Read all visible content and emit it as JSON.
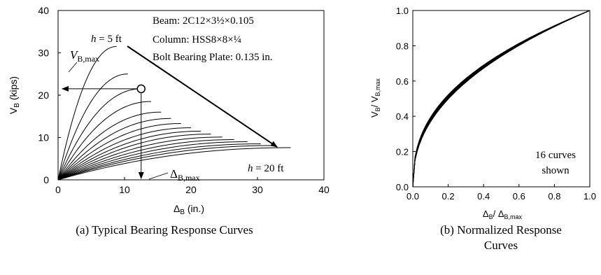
{
  "chart_data": [
    {
      "type": "line",
      "panel": "a",
      "caption": "(a) Typical Bearing Response Curves",
      "xlabel_main": "Δ",
      "xlabel_sub": "B",
      "xlabel_unit": "(in.)",
      "ylabel_main": "V",
      "ylabel_sub": "B",
      "ylabel_unit": "(kips)",
      "xlim": [
        0,
        40
      ],
      "ylim": [
        0,
        40
      ],
      "xticks": [
        "0",
        "10",
        "20",
        "30",
        "40"
      ],
      "yticks": [
        "0",
        "10",
        "20",
        "30",
        "40"
      ],
      "grid": false,
      "legend": {
        "beam": "Beam: 2C12×3½×0.105",
        "column": "Column: HSS8×8×¼",
        "plate": "Bolt Bearing Plate: 0.135 in."
      },
      "annotations": {
        "h_start_var": "h",
        "h_start_val": "= 5 ft",
        "h_end_var": "h",
        "h_end_val": "= 20 ft",
        "vbmax_main": "V",
        "vbmax_sub": "B,max",
        "dbmax_main": "Δ",
        "dbmax_sub": "B,max"
      },
      "marker": {
        "x": 12.5,
        "y": 21.5
      },
      "series": [
        {
          "xmax": 8.8,
          "ymax": 31.5
        },
        {
          "xmax": 10.5,
          "ymax": 25.0
        },
        {
          "xmax": 12.5,
          "ymax": 21.5
        },
        {
          "xmax": 14.0,
          "ymax": 18.5
        },
        {
          "xmax": 15.5,
          "ymax": 16.0
        },
        {
          "xmax": 17.0,
          "ymax": 14.5
        },
        {
          "xmax": 18.5,
          "ymax": 13.3
        },
        {
          "xmax": 20.0,
          "ymax": 12.3
        },
        {
          "xmax": 21.5,
          "ymax": 11.5
        },
        {
          "xmax": 23.0,
          "ymax": 10.8
        },
        {
          "xmax": 24.7,
          "ymax": 10.1
        },
        {
          "xmax": 26.5,
          "ymax": 9.5
        },
        {
          "xmax": 28.5,
          "ymax": 9.0
        },
        {
          "xmax": 30.5,
          "ymax": 8.5
        },
        {
          "xmax": 32.5,
          "ymax": 8.1
        },
        {
          "xmax": 35.0,
          "ymax": 7.6
        }
      ]
    },
    {
      "type": "line",
      "panel": "b",
      "caption_line1": "(b) Normalized Response",
      "caption_line2": "Curves",
      "xlabel_a_main": "Δ",
      "xlabel_a_sub": "B",
      "xlabel_b_main": "/ Δ",
      "xlabel_b_sub": "B,max",
      "ylabel_a_main": "V",
      "ylabel_a_sub": "B",
      "ylabel_b_main": "/ V",
      "ylabel_b_sub": "B,max",
      "xlim": [
        0,
        1
      ],
      "ylim": [
        0,
        1
      ],
      "xticks": [
        "0.0",
        "0.2",
        "0.4",
        "0.6",
        "0.8",
        "1.0"
      ],
      "yticks": [
        "0.0",
        "0.2",
        "0.4",
        "0.6",
        "0.8",
        "1.0"
      ],
      "grid": false,
      "note_line1": "16 curves",
      "note_line2": "shown",
      "curve_count": 16
    }
  ]
}
